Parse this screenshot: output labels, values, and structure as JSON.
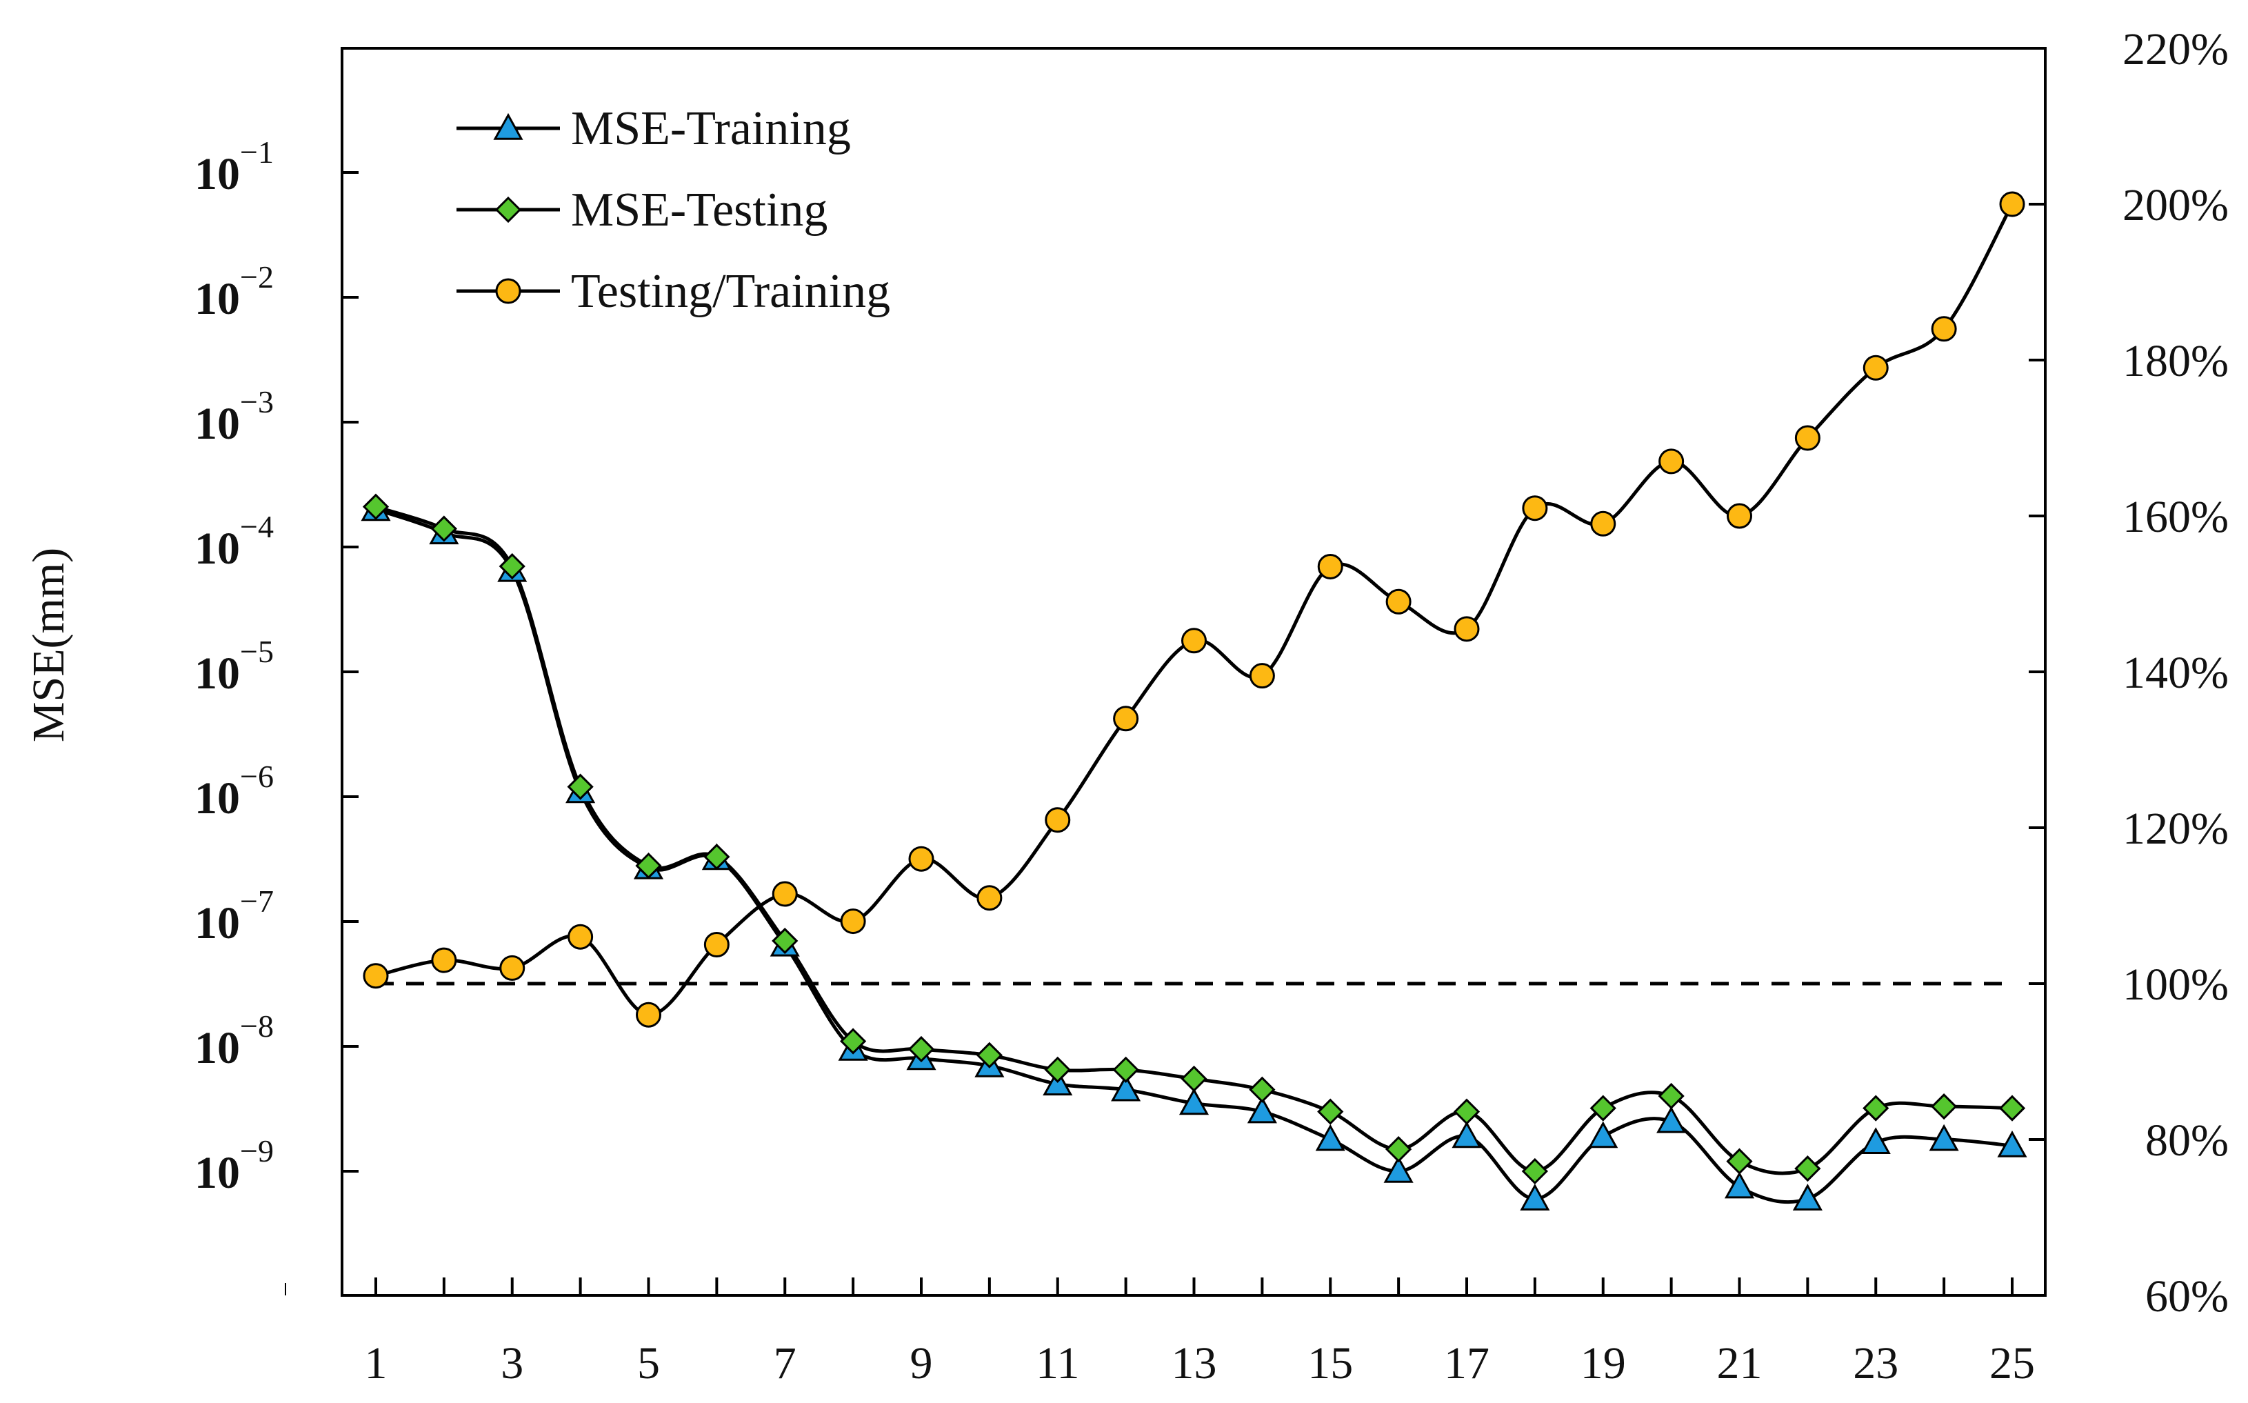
{
  "chart_data": {
    "type": "line",
    "title": "",
    "xlabel": "",
    "ylabel": "MSE(mm)",
    "y2label": "",
    "x": [
      1,
      2,
      3,
      4,
      5,
      6,
      7,
      8,
      9,
      10,
      11,
      12,
      13,
      14,
      15,
      16,
      17,
      18,
      19,
      20,
      21,
      22,
      23,
      24,
      25
    ],
    "x_tick_labels": [
      "1",
      "3",
      "5",
      "7",
      "9",
      "11",
      "13",
      "15",
      "17",
      "19",
      "21",
      "23",
      "25"
    ],
    "y_scale": "log",
    "y_tick_labels": [
      {
        "base": "10",
        "exp": "−1",
        "value": 0.1
      },
      {
        "base": "10",
        "exp": "−2",
        "value": 0.01
      },
      {
        "base": "10",
        "exp": "−3",
        "value": 0.001
      },
      {
        "base": "10",
        "exp": "−4",
        "value": 0.0001
      },
      {
        "base": "10",
        "exp": "−5",
        "value": 1e-05
      },
      {
        "base": "10",
        "exp": "−6",
        "value": 1e-06
      },
      {
        "base": "10",
        "exp": "−7",
        "value": 1e-07
      },
      {
        "base": "10",
        "exp": "−8",
        "value": 1e-08
      },
      {
        "base": "10",
        "exp": "−9",
        "value": 1e-09
      }
    ],
    "y2_tick_labels": [
      "220%",
      "200%",
      "180%",
      "160%",
      "140%",
      "120%",
      "100%",
      "80%",
      "60%"
    ],
    "y2_range": [
      60,
      220
    ],
    "reference_line": {
      "axis": "y2",
      "value": 100,
      "style": "dashed"
    },
    "series": [
      {
        "name": "MSE-Training",
        "axis": "y",
        "marker": "triangle",
        "marker_color": "#1e9be0",
        "values": [
          0.0002,
          0.00013,
          6.5e-05,
          1.1e-06,
          2.7e-07,
          3.2e-07,
          6.5e-08,
          9.5e-09,
          8e-09,
          7e-09,
          5e-09,
          4.5e-09,
          3.5e-09,
          3e-09,
          1.8e-09,
          1e-09,
          1.9e-09,
          6e-10,
          1.9e-09,
          2.5e-09,
          7.5e-10,
          6e-10,
          1.7e-09,
          1.8e-09,
          1.6e-09
        ]
      },
      {
        "name": "MSE-Testing",
        "axis": "y",
        "marker": "diamond",
        "marker_color": "#55c62e",
        "values": [
          0.00021,
          0.00014,
          7e-05,
          1.2e-06,
          2.8e-07,
          3.3e-07,
          7e-08,
          1.1e-08,
          9.5e-09,
          8.5e-09,
          6.5e-09,
          6.5e-09,
          5.5e-09,
          4.5e-09,
          3e-09,
          1.5e-09,
          3e-09,
          1e-09,
          3.2e-09,
          4e-09,
          1.2e-09,
          1.05e-09,
          3.2e-09,
          3.3e-09,
          3.2e-09
        ]
      },
      {
        "name": "Testing/Training",
        "axis": "y2",
        "marker": "circle",
        "marker_color": "#fdb813",
        "values": [
          101,
          103,
          102,
          106,
          96,
          105,
          111.5,
          108,
          116,
          111,
          121,
          134,
          144,
          139.5,
          153.5,
          149,
          145.5,
          161,
          159,
          167,
          160,
          170,
          179,
          184,
          200
        ]
      }
    ],
    "legend_position": "top-left"
  }
}
